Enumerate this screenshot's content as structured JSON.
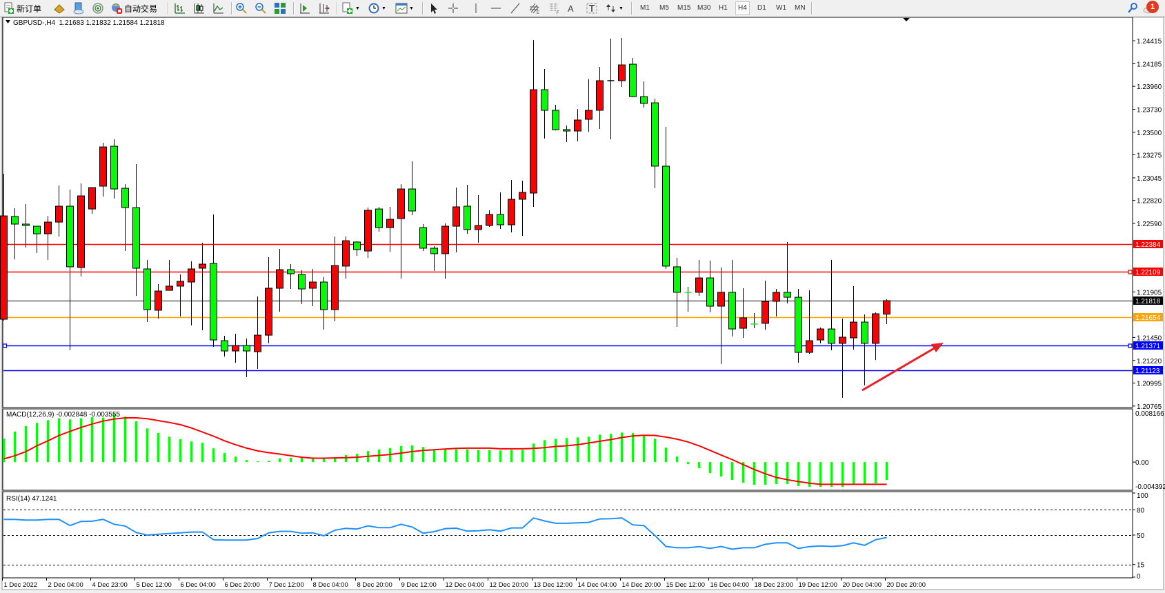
{
  "toolbar": {
    "new_order_label": "新订单",
    "auto_trading_label": "自动交易",
    "timeframes": [
      "M1",
      "M5",
      "M15",
      "M30",
      "H1",
      "H4",
      "D1",
      "W1",
      "MN"
    ],
    "active_timeframe": "H4",
    "notification_count": "1",
    "icons": [
      "new-order-icon",
      "gold-icon",
      "navigator-icon",
      "signal-icon",
      "auto-trading-icon",
      "bar-chart-icon",
      "candlestick-icon",
      "line-chart-icon",
      "zoom-in-icon",
      "zoom-out-icon",
      "tile-windows-icon",
      "chart-shift-icon",
      "autoscroll-icon",
      "indicators-icon",
      "periods-icon",
      "templates-icon",
      "cursor-icon",
      "crosshair-icon",
      "vertical-line-icon",
      "horizontal-line-icon",
      "trendline-icon",
      "fibo-channel-icon",
      "fibo-icon",
      "text-icon",
      "text-label-icon",
      "arrows-icon",
      "search-icon",
      "notification-icon"
    ]
  },
  "chart": {
    "title": "GBPUSD-,H4  1.21683 1.21832 1.21584 1.21818",
    "macd_label": "MACD(12,26,9) -0.002848 -0.003555",
    "rsi_label": "RSI(14) 47.1241"
  },
  "chart_data": {
    "type": "candlestick",
    "symbol": "GBPUSD-",
    "timeframe": "H4",
    "ohlc_order": [
      "open",
      "high",
      "low",
      "close"
    ],
    "bullish_color": "#ff0000",
    "bearish_color": "#00ff00",
    "ylim": [
      1.2075,
      1.2465
    ],
    "price_ticks": [
      "1.24415",
      "1.24185",
      "1.23960",
      "1.23730",
      "1.23500",
      "1.23275",
      "1.23045",
      "1.22820",
      "1.22590",
      "1.21905",
      "1.21450",
      "1.21220",
      "1.20995",
      "1.20765"
    ],
    "time_labels": [
      "1 Dec 2022",
      "2 Dec 04:00",
      "4 Dec 23:00",
      "5 Dec 12:00",
      "6 Dec 04:00",
      "6 Dec 20:00",
      "7 Dec 12:00",
      "8 Dec 04:00",
      "8 Dec 20:00",
      "9 Dec 12:00",
      "12 Dec 04:00",
      "12 Dec 20:00",
      "13 Dec 12:00",
      "14 Dec 04:00",
      "14 Dec 20:00",
      "15 Dec 12:00",
      "16 Dec 04:00",
      "18 Dec 23:00",
      "19 Dec 12:00",
      "20 Dec 04:00",
      "20 Dec 20:00"
    ],
    "time_label_every_n_bars": 4,
    "candles": [
      [
        1.21632,
        1.23086,
        1.21618,
        1.22665
      ],
      [
        1.22659,
        1.22741,
        1.22231,
        1.22583
      ],
      [
        1.22583,
        1.22783,
        1.22349,
        1.22569
      ],
      [
        1.22562,
        1.22562,
        1.22293,
        1.22486
      ],
      [
        1.22486,
        1.22665,
        1.22225,
        1.22603
      ],
      [
        1.22603,
        1.22969,
        1.22459,
        1.22762
      ],
      [
        1.22762,
        1.22927,
        1.21322,
        1.22156
      ],
      [
        1.22149,
        1.22989,
        1.22059,
        1.22865
      ],
      [
        1.22734,
        1.22948,
        1.22686,
        1.22948
      ],
      [
        1.22962,
        1.23396,
        1.22858,
        1.23354
      ],
      [
        1.23361,
        1.2343,
        1.22838,
        1.22934
      ],
      [
        1.22941,
        1.22982,
        1.22314,
        1.22748
      ],
      [
        1.22748,
        1.23182,
        1.21866,
        1.22142
      ],
      [
        1.22135,
        1.22225,
        1.21604,
        1.21728
      ],
      [
        1.21722,
        1.21983,
        1.21639,
        1.21914
      ],
      [
        1.21921,
        1.22225,
        1.21921,
        1.21963
      ],
      [
        1.21963,
        1.2208,
        1.2166,
        1.22011
      ],
      [
        1.22004,
        1.22211,
        1.2157,
        1.22135
      ],
      [
        1.22142,
        1.22397,
        1.21522,
        1.22183
      ],
      [
        1.2219,
        1.22679,
        1.21356,
        1.21425
      ],
      [
        1.21418,
        1.21467,
        1.2126,
        1.21315
      ],
      [
        1.21315,
        1.21487,
        1.21198,
        1.2137
      ],
      [
        1.2137,
        1.21439,
        1.21053,
        1.21315
      ],
      [
        1.21308,
        1.21859,
        1.21136,
        1.21473
      ],
      [
        1.21473,
        1.22252,
        1.21391,
        1.21942
      ],
      [
        1.21942,
        1.22335,
        1.21708,
        1.22128
      ],
      [
        1.22128,
        1.22183,
        1.21935,
        1.22087
      ],
      [
        1.2208,
        1.22121,
        1.21784,
        1.21935
      ],
      [
        1.21942,
        1.22135,
        1.21763,
        1.22004
      ],
      [
        1.22004,
        1.22052,
        1.21529,
        1.21728
      ],
      [
        1.21728,
        1.22459,
        1.21611,
        1.22169
      ],
      [
        1.22163,
        1.22459,
        1.22038,
        1.22417
      ],
      [
        1.22404,
        1.22411,
        1.22266,
        1.22328
      ],
      [
        1.22314,
        1.22748,
        1.22245,
        1.22721
      ],
      [
        1.22734,
        1.22755,
        1.22507,
        1.22548
      ],
      [
        1.22548,
        1.22755,
        1.22307,
        1.22631
      ],
      [
        1.22638,
        1.22982,
        1.22038,
        1.22934
      ],
      [
        1.22934,
        1.2321,
        1.22672,
        1.22714
      ],
      [
        1.22548,
        1.22583,
        1.22314,
        1.22342
      ],
      [
        1.22342,
        1.22362,
        1.22114,
        1.22287
      ],
      [
        1.22287,
        1.2259,
        1.22038,
        1.22562
      ],
      [
        1.22562,
        1.22948,
        1.223,
        1.22755
      ],
      [
        1.22762,
        1.22976,
        1.22486,
        1.22528
      ],
      [
        1.22528,
        1.22872,
        1.22397,
        1.22569
      ],
      [
        1.22569,
        1.22721,
        1.22555,
        1.22679
      ],
      [
        1.22679,
        1.229,
        1.22535,
        1.22576
      ],
      [
        1.22576,
        1.23024,
        1.225,
        1.22831
      ],
      [
        1.22831,
        1.23017,
        1.22466,
        1.229
      ],
      [
        1.22893,
        1.24422,
        1.22755,
        1.23926
      ],
      [
        1.23926,
        1.24133,
        1.23437,
        1.2372
      ],
      [
        1.2372,
        1.23775,
        1.2352,
        1.23527
      ],
      [
        1.23527,
        1.23568,
        1.23403,
        1.23513
      ],
      [
        1.23513,
        1.23733,
        1.2341,
        1.23623
      ],
      [
        1.2363,
        1.2403,
        1.23506,
        1.2372
      ],
      [
        1.2372,
        1.24154,
        1.23534,
        1.24016
      ],
      [
        1.24016,
        1.24436,
        1.2343,
        1.24016
      ],
      [
        1.24016,
        1.24443,
        1.23954,
        1.24174
      ],
      [
        1.24181,
        1.24243,
        1.23851,
        1.23857
      ],
      [
        1.23857,
        1.24009,
        1.23747,
        1.23789
      ],
      [
        1.23795,
        1.23837,
        1.22941,
        1.23162
      ],
      [
        1.23162,
        1.23554,
        1.22135,
        1.22163
      ],
      [
        1.22156,
        1.22245,
        1.21556,
        1.21901
      ],
      [
        1.21901,
        1.21956,
        1.21708,
        1.21901
      ],
      [
        1.21901,
        1.22225,
        1.21866,
        1.22045
      ],
      [
        1.22045,
        1.22218,
        1.21701,
        1.21763
      ],
      [
        1.21763,
        1.22149,
        1.21184,
        1.21901
      ],
      [
        1.21901,
        1.22225,
        1.2146,
        1.21535
      ],
      [
        1.21542,
        1.21942,
        1.21446,
        1.21646
      ],
      [
        1.21584,
        1.21694,
        1.21542,
        1.21584
      ],
      [
        1.21591,
        1.22018,
        1.21529,
        1.21811
      ],
      [
        1.21811,
        1.21935,
        1.2166,
        1.21901
      ],
      [
        1.21901,
        1.22404,
        1.2179,
        1.21852
      ],
      [
        1.21852,
        1.21935,
        1.21198,
        1.21301
      ],
      [
        1.21301,
        1.21921,
        1.21287,
        1.21418
      ],
      [
        1.21425,
        1.21549,
        1.21391,
        1.21535
      ],
      [
        1.21535,
        1.22225,
        1.21322,
        1.21391
      ],
      [
        1.21391,
        1.21639,
        1.20847,
        1.21453
      ],
      [
        1.21446,
        1.21963,
        1.21329,
        1.21604
      ],
      [
        1.21604,
        1.2168,
        1.20971,
        1.21391
      ],
      [
        1.21391,
        1.21701,
        1.21225,
        1.21687
      ],
      [
        1.21683,
        1.21832,
        1.21584,
        1.21818
      ]
    ],
    "price_lines": [
      {
        "price": "1.22384",
        "color": "#ff0000",
        "end_markers": false
      },
      {
        "price": "1.22109",
        "color": "#ff0000",
        "end_markers": true
      },
      {
        "price": "1.21818",
        "color": "#000000",
        "end_markers": false,
        "thin": true
      },
      {
        "price": "1.21654",
        "color": "#ffa500",
        "end_markers": false
      },
      {
        "price": "1.21371",
        "color": "#0000ff",
        "end_markers": true
      },
      {
        "price": "1.21123",
        "color": "#0000ff",
        "end_markers": false
      }
    ],
    "arrow": {
      "color": "#e8202a",
      "direction": "up-right"
    },
    "macd": {
      "params": "12,26,9",
      "ylim": [
        -0.004392,
        0.008166
      ],
      "axis_labels": [
        "0.008166",
        "0.00",
        "-0.004392"
      ],
      "histogram_color": "#00ff00",
      "signal_color": "#ff0000",
      "histogram": [
        0.00377,
        0.00487,
        0.00575,
        0.00626,
        0.0067,
        0.00699,
        0.00681,
        0.00699,
        0.00717,
        0.0071,
        0.00765,
        0.00725,
        0.00651,
        0.00538,
        0.00465,
        0.00406,
        0.00366,
        0.00329,
        0.00307,
        0.0022,
        0.00146,
        0.00088,
        0.00033,
        0.00011,
        0.00022,
        0.00059,
        0.0007,
        0.00077,
        0.00066,
        0.00059,
        0.00077,
        0.00113,
        0.00132,
        0.00176,
        0.00201,
        0.00223,
        0.00256,
        0.00267,
        0.00242,
        0.00205,
        0.00205,
        0.00205,
        0.00205,
        0.00194,
        0.00194,
        0.00187,
        0.00194,
        0.00194,
        0.00296,
        0.00351,
        0.00373,
        0.00384,
        0.00395,
        0.00406,
        0.00439,
        0.0045,
        0.00472,
        0.00465,
        0.00436,
        0.00373,
        0.00231,
        0.00088,
        -0.00033,
        -0.00099,
        -0.00176,
        -0.00231,
        -0.00285,
        -0.00329,
        -0.00362,
        -0.00362,
        -0.00351,
        -0.00351,
        -0.00384,
        -0.00395,
        -0.00395,
        -0.00395,
        -0.00395,
        -0.00362,
        -0.00362,
        -0.0034,
        -0.002848
      ],
      "signal": [
        0.00051,
        0.00102,
        0.00168,
        0.0026,
        0.0034,
        0.00425,
        0.0049,
        0.00553,
        0.00608,
        0.00655,
        0.00688,
        0.00706,
        0.00706,
        0.00692,
        0.00662,
        0.00633,
        0.00597,
        0.00545,
        0.00479,
        0.00414,
        0.0034,
        0.00278,
        0.00223,
        0.00179,
        0.0015,
        0.00128,
        0.00102,
        0.00077,
        0.00062,
        0.00062,
        0.00066,
        0.0007,
        0.00077,
        0.00092,
        0.00106,
        0.00121,
        0.00143,
        0.00168,
        0.00187,
        0.00198,
        0.00209,
        0.0022,
        0.00223,
        0.00223,
        0.00223,
        0.00212,
        0.00212,
        0.00212,
        0.0022,
        0.00231,
        0.00249,
        0.0026,
        0.00278,
        0.00304,
        0.00333,
        0.00359,
        0.00392,
        0.00417,
        0.00428,
        0.00425,
        0.00399,
        0.00366,
        0.00322,
        0.0026,
        0.00187,
        0.00113,
        0.0004,
        -0.0004,
        -0.00117,
        -0.00187,
        -0.00245,
        -0.00282,
        -0.00311,
        -0.00337,
        -0.00355,
        -0.003555,
        -0.003555,
        -0.003555,
        -0.003555,
        -0.003555,
        -0.003555
      ]
    },
    "rsi": {
      "period": 14,
      "ylim": [
        0,
        100
      ],
      "levels": [
        80,
        50,
        15
      ],
      "axis_labels": [
        "100",
        "80",
        "50",
        "15",
        "0"
      ],
      "color": "#1e90ff",
      "values": [
        68.7,
        68.7,
        67.9,
        67.9,
        68.7,
        68.7,
        61.3,
        66.2,
        66.5,
        68.7,
        62.9,
        60.7,
        53,
        50,
        51.1,
        51.9,
        52.7,
        53.6,
        53.6,
        44.5,
        44,
        44,
        44,
        45.9,
        52.7,
        54.4,
        54.4,
        52.2,
        52.7,
        49.2,
        55.8,
        58,
        57.1,
        61,
        58.8,
        58.8,
        62.9,
        59.6,
        52.2,
        54.1,
        57.7,
        58.2,
        54.7,
        55.2,
        56.3,
        54.7,
        58.5,
        58.5,
        70.3,
        66.8,
        64,
        64,
        64.6,
        65.1,
        69.2,
        69.5,
        70.3,
        62.1,
        61.3,
        49.5,
        36.5,
        34.9,
        34.9,
        36.3,
        34.1,
        36.5,
        33.2,
        34.9,
        34.9,
        39,
        40.7,
        40.7,
        34.1,
        36.3,
        37.1,
        36.5,
        37.4,
        40.7,
        37.9,
        44.5,
        47.1241
      ]
    }
  }
}
